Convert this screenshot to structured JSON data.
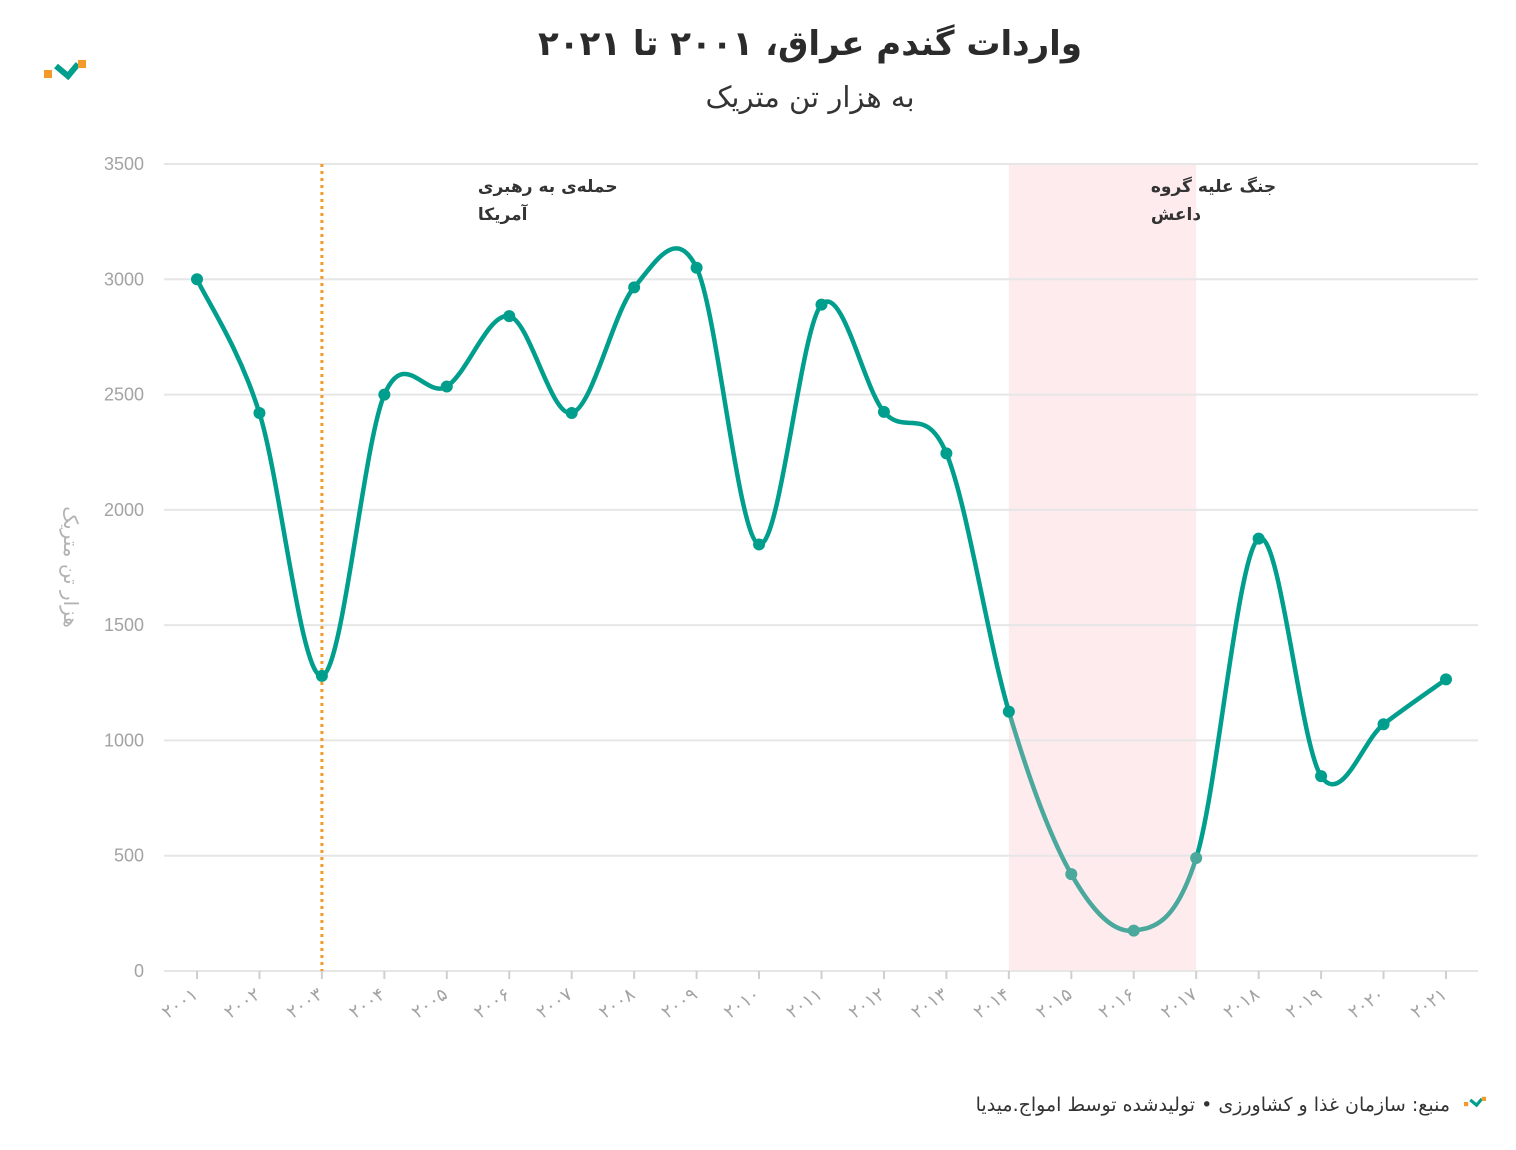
{
  "header": {
    "title": "واردات گندم عراق، ۲۰۰۱ تا ۲۰۲۱",
    "subtitle": "به هزار تن متریک"
  },
  "footer": {
    "source": "منبع: سازمان غذا و کشاورزی • تولیدشده توسط امواج.میدیا"
  },
  "colors": {
    "line": "#009e8c",
    "line_highlight": "#4aa89c",
    "event_line": "#f39a2b",
    "band": "#fdebee",
    "grid": "#e6e6e6",
    "logo_orange": "#f39a2b",
    "logo_teal": "#009e8c"
  },
  "chart_data": {
    "type": "line",
    "title": "واردات گندم عراق، ۲۰۰۱ تا ۲۰۲۱",
    "subtitle": "به هزار تن متریک",
    "ylabel": "هزار تن متریک",
    "xlabel": "",
    "x": [
      "۲۰۰۱",
      "۲۰۰۲",
      "۲۰۰۳",
      "۲۰۰۴",
      "۲۰۰۵",
      "۲۰۰۶",
      "۲۰۰۷",
      "۲۰۰۸",
      "۲۰۰۹",
      "۲۰۱۰",
      "۲۰۱۱",
      "۲۰۱۲",
      "۲۰۱۳",
      "۲۰۱۴",
      "۲۰۱۵",
      "۲۰۱۶",
      "۲۰۱۷",
      "۲۰۱۸",
      "۲۰۱۹",
      "۲۰۲۰",
      "۲۰۲۱"
    ],
    "values": [
      3000,
      2420,
      1280,
      2500,
      2535,
      2840,
      2420,
      2965,
      3050,
      1850,
      2890,
      2425,
      2245,
      1125,
      420,
      175,
      490,
      1875,
      845,
      1070,
      1265
    ],
    "ylim": [
      0,
      3500
    ],
    "yticks": [
      0,
      500,
      1000,
      1500,
      2000,
      2500,
      3000,
      3500
    ],
    "grid": true,
    "legend": "none",
    "events": [
      {
        "type": "line",
        "x": "۲۰۰۳",
        "label_lines": [
          "حمله‌ی به رهبری",
          "آمریکا"
        ]
      },
      {
        "type": "band",
        "from": "۲۰۱۴",
        "to": "۲۰۱۷",
        "label_lines": [
          "جنگ علیه گروه",
          "داعش"
        ]
      }
    ]
  }
}
